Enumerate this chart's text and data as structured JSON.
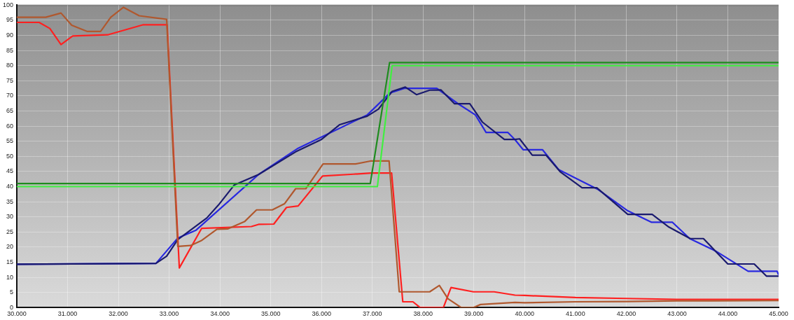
{
  "chart_data": {
    "type": "line",
    "xlim": [
      30000,
      45000
    ],
    "ylim": [
      0,
      100
    ],
    "xticks": [
      {
        "value": 30000,
        "label": "30.000"
      },
      {
        "value": 31000,
        "label": "31.000"
      },
      {
        "value": 32000,
        "label": "32.000"
      },
      {
        "value": 33000,
        "label": "33.000"
      },
      {
        "value": 34000,
        "label": "34.000"
      },
      {
        "value": 35000,
        "label": "35.000"
      },
      {
        "value": 36000,
        "label": "36.000"
      },
      {
        "value": 37000,
        "label": "37.000"
      },
      {
        "value": 38000,
        "label": "38.000"
      },
      {
        "value": 39000,
        "label": "39.000"
      },
      {
        "value": 40000,
        "label": "40.000"
      },
      {
        "value": 41000,
        "label": "41.000"
      },
      {
        "value": 42000,
        "label": "42.000"
      },
      {
        "value": 43000,
        "label": "43.000"
      },
      {
        "value": 44000,
        "label": "44.000"
      },
      {
        "value": 45000,
        "label": "45.000"
      }
    ],
    "yticks": [
      0,
      5,
      10,
      15,
      20,
      25,
      30,
      35,
      40,
      45,
      50,
      55,
      60,
      65,
      70,
      75,
      80,
      85,
      90,
      95,
      100
    ],
    "grid": true,
    "marker": "none",
    "line_style": "solid",
    "series": [
      {
        "color": "#1e8c1e",
        "x": [
          30000,
          36960,
          37340,
          45000
        ],
        "values": [
          41,
          41,
          81,
          81
        ]
      },
      {
        "color": "#40f040",
        "x": [
          30000,
          37100,
          37390,
          45000
        ],
        "values": [
          40,
          40,
          80,
          80
        ]
      },
      {
        "color": "#b0582e",
        "x": [
          30000,
          30570,
          30870,
          31080,
          31390,
          31650,
          31850,
          32100,
          32410,
          32950,
          33170,
          33420,
          33630,
          33940,
          34150,
          34490,
          34720,
          35030,
          35270,
          35490,
          35690,
          36030,
          36670,
          36980,
          37330,
          37530,
          38130,
          38320,
          38490,
          38750,
          38990,
          39130,
          39810,
          40000,
          41000,
          42000,
          43000,
          45000
        ],
        "values": [
          96,
          96,
          97.4,
          93.4,
          91.3,
          91.3,
          96,
          99.3,
          96.5,
          95.3,
          20.2,
          20.5,
          22.1,
          25.9,
          26,
          28.5,
          32.3,
          32.3,
          34.3,
          39.3,
          39.3,
          47.5,
          47.5,
          48.5,
          48.5,
          5.2,
          5.2,
          7.3,
          2.9,
          0,
          0,
          1,
          1.7,
          1.6,
          1.9,
          2,
          2.2,
          2.3
        ]
      },
      {
        "color": "#ff2020",
        "x": [
          30000,
          30440,
          30650,
          30870,
          31100,
          31790,
          32480,
          32960,
          33200,
          33640,
          34620,
          34760,
          35060,
          35310,
          35540,
          36020,
          36630,
          36980,
          37380,
          37600,
          37800,
          37940,
          38400,
          38550,
          38990,
          39400,
          39810,
          40000,
          41000,
          42000,
          43000,
          45000
        ],
        "values": [
          94.3,
          94.3,
          92.3,
          87,
          89.8,
          90.2,
          93.5,
          93.5,
          13.1,
          26.2,
          26.8,
          27.5,
          27.6,
          33.1,
          33.6,
          43.5,
          44.1,
          44.5,
          44.5,
          1.9,
          1.9,
          0,
          0,
          6.6,
          5.2,
          5.2,
          4.1,
          4,
          3.3,
          3,
          2.7,
          2.7
        ]
      },
      {
        "color": "#1a1a6e",
        "x": [
          30000,
          32740,
          32950,
          33170,
          33740,
          33970,
          34280,
          34760,
          35490,
          35990,
          36360,
          36900,
          37120,
          37390,
          37650,
          37870,
          38130,
          38350,
          38620,
          38920,
          39170,
          39600,
          39810,
          39900,
          40150,
          40420,
          40700,
          41130,
          41420,
          42030,
          42510,
          42840,
          43260,
          43520,
          44000,
          44520,
          44760,
          45000
        ],
        "values": [
          14.3,
          14.6,
          17,
          22.5,
          29.6,
          33.9,
          40.5,
          44,
          51.5,
          55.5,
          60.5,
          63.3,
          65.6,
          71.5,
          72.9,
          70.4,
          71.9,
          72,
          67.4,
          67.4,
          61.3,
          55.6,
          55.6,
          55.8,
          50.4,
          50.4,
          44.9,
          39.6,
          39.6,
          30.8,
          30.8,
          26.6,
          22.8,
          22.8,
          14.4,
          14.4,
          10.4,
          10.4
        ]
      },
      {
        "color": "#2828e0",
        "x": [
          30000,
          32740,
          33170,
          33530,
          34760,
          35540,
          36900,
          37350,
          37630,
          38270,
          38680,
          39030,
          39240,
          39670,
          39810,
          39970,
          40350,
          40670,
          41450,
          42030,
          42500,
          42910,
          43250,
          43770,
          44400,
          44970,
          45000
        ],
        "values": [
          14.3,
          14.6,
          23,
          25.6,
          44,
          52.7,
          63.7,
          71,
          72.5,
          72.5,
          67.5,
          63.7,
          57.9,
          57.9,
          55.5,
          52.2,
          52.2,
          45.6,
          39,
          32,
          28.2,
          28.2,
          22.8,
          18.6,
          12,
          12,
          10.8
        ]
      }
    ]
  }
}
